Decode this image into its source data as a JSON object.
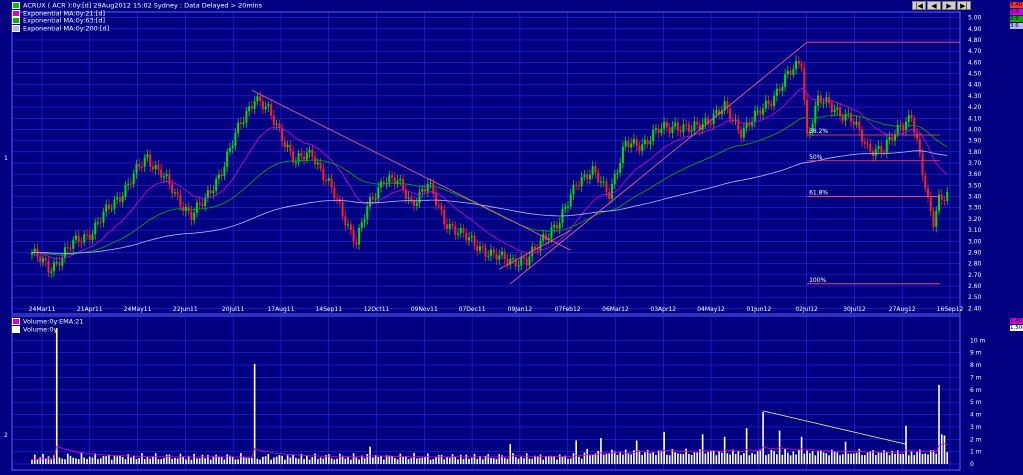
{
  "legend_price": [
    {
      "label": "ACRUX ( ACR ):0y:[d]  29Aug2012 15:02 Sydney : Data Delayed > 20mins",
      "color": "#00c000"
    },
    {
      "label": "Exponential MA:0y:21:[d]",
      "color": "#d800d8"
    },
    {
      "label": "Exponential MA:0y:63:[d]",
      "color": "#00b000"
    },
    {
      "label": "Exponential MA:0y:200:[d]",
      "color": "#b8b8ff"
    }
  ],
  "legend_volume": [
    {
      "label": "Volume:0y:EMA:21",
      "color": "#d800d8"
    },
    {
      "label": "Volume:0y",
      "color": "#ffffff"
    }
  ],
  "panel_labels": {
    "price": "1",
    "volume": "2"
  },
  "nav_buttons": [
    "|◀",
    "◀",
    "▶",
    "▶|"
  ],
  "last_values": {
    "price": "3.40",
    "ema21": "3.9",
    "ema63": "3.9",
    "ema200": "3.6",
    "vol_ema": "1.402",
    "volume": "1.5063"
  },
  "colors": {
    "up": "#00e000",
    "down": "#ff2020",
    "ema21": "#d800d8",
    "ema63": "#00b000",
    "ema200": "#b8b8ff",
    "fib": "#ff5060",
    "trend": "#ff6090",
    "volume": "#ffffff",
    "volume_ema": "#d800d8",
    "background": "#000080",
    "grid": "#3030ff",
    "fib_text": "#ffff60"
  },
  "chart_data": [
    {
      "type": "candlestick",
      "title": "ACRUX ( ACR ):0y:[d]  29Aug2012 15:02 Sydney : Data Delayed > 20mins",
      "x_ticks": [
        "24Mar11",
        "21Apr11",
        "24May11",
        "22Jun11",
        "20Jul11",
        "17Aug11",
        "14Sep11",
        "12Oct11",
        "09Nov11",
        "07Dec11",
        "09Jan12",
        "07Feb12",
        "06Mar12",
        "03Apr12",
        "04May12",
        "01Jun12",
        "02Jul12",
        "30Jul12",
        "27Aug12",
        "16Sep12"
      ],
      "y_ticks": [
        "5.00",
        "4.90",
        "4.80",
        "4.70",
        "4.60",
        "4.50",
        "4.40",
        "4.30",
        "4.20",
        "4.10",
        "4.00",
        "3.90",
        "3.80",
        "3.70",
        "3.60",
        "3.50",
        "3.40",
        "3.30",
        "3.20",
        "3.10",
        "3.00",
        "2.90",
        "2.80",
        "2.70",
        "2.60",
        "2.50",
        "2.40"
      ],
      "ylim": [
        2.35,
        5.05
      ],
      "price_anchors": [
        [
          0,
          2.9
        ],
        [
          6,
          2.75
        ],
        [
          14,
          2.95
        ],
        [
          22,
          3.1
        ],
        [
          30,
          3.35
        ],
        [
          36,
          3.55
        ],
        [
          42,
          3.75
        ],
        [
          47,
          3.62
        ],
        [
          52,
          3.4
        ],
        [
          58,
          3.25
        ],
        [
          63,
          3.35
        ],
        [
          70,
          3.7
        ],
        [
          76,
          4.05
        ],
        [
          81,
          4.3
        ],
        [
          86,
          4.15
        ],
        [
          91,
          3.95
        ],
        [
          96,
          3.7
        ],
        [
          102,
          3.8
        ],
        [
          106,
          3.6
        ],
        [
          112,
          3.3
        ],
        [
          118,
          3.0
        ],
        [
          122,
          3.28
        ],
        [
          128,
          3.58
        ],
        [
          133,
          3.52
        ],
        [
          138,
          3.35
        ],
        [
          144,
          3.5
        ],
        [
          150,
          3.2
        ],
        [
          156,
          3.05
        ],
        [
          162,
          2.98
        ],
        [
          168,
          2.85
        ],
        [
          174,
          2.85
        ],
        [
          180,
          2.8
        ],
        [
          186,
          3.05
        ],
        [
          192,
          3.15
        ],
        [
          198,
          3.55
        ],
        [
          204,
          3.6
        ],
        [
          210,
          3.45
        ],
        [
          216,
          3.85
        ],
        [
          222,
          3.88
        ],
        [
          228,
          3.98
        ],
        [
          234,
          4.05
        ],
        [
          240,
          3.98
        ],
        [
          246,
          4.1
        ],
        [
          252,
          4.18
        ],
        [
          258,
          4.0
        ],
        [
          264,
          4.12
        ],
        [
          268,
          4.25
        ],
        [
          272,
          4.38
        ],
        [
          276,
          4.5
        ],
        [
          280,
          4.62
        ],
        [
          282,
          3.95
        ],
        [
          286,
          4.25
        ],
        [
          292,
          4.2
        ],
        [
          298,
          4.08
        ],
        [
          304,
          3.85
        ],
        [
          310,
          3.8
        ],
        [
          316,
          4.05
        ],
        [
          320,
          4.12
        ],
        [
          324,
          3.6
        ],
        [
          326,
          3.35
        ],
        [
          328,
          3.2
        ],
        [
          330,
          3.4
        ]
      ],
      "fibonacci": [
        {
          "level": "38.2%",
          "price": 3.95
        },
        {
          "level": "50%",
          "price": 3.72
        },
        {
          "level": "61.8%",
          "price": 3.4
        },
        {
          "level": "100%",
          "price": 2.62
        }
      ],
      "series": [
        {
          "name": "Exponential MA:0y:21:[d]",
          "period": 21
        },
        {
          "name": "Exponential MA:0y:63:[d]",
          "period": 63
        },
        {
          "name": "Exponential MA:0y:200:[d]",
          "period": 200
        }
      ]
    },
    {
      "type": "bar",
      "title": "Volume:0y",
      "y_ticks": [
        "10 m",
        "9 m",
        "8 m",
        "7 m",
        "6 m",
        "5 m",
        "4 m",
        "3 m",
        "2 m",
        "1 m",
        "0"
      ],
      "ylim": [
        0,
        11
      ],
      "spikes": [
        [
          9,
          11.0
        ],
        [
          81,
          8.1
        ],
        [
          123,
          1.4
        ],
        [
          174,
          1.6
        ],
        [
          198,
          1.9
        ],
        [
          207,
          2.1
        ],
        [
          220,
          1.9
        ],
        [
          230,
          2.6
        ],
        [
          244,
          2.4
        ],
        [
          252,
          2.2
        ],
        [
          260,
          2.9
        ],
        [
          266,
          4.2
        ],
        [
          272,
          2.7
        ],
        [
          280,
          2.2
        ],
        [
          296,
          1.8
        ],
        [
          318,
          3.1
        ],
        [
          330,
          6.4
        ],
        [
          331,
          2.4
        ],
        [
          332,
          2.3
        ]
      ],
      "series": [
        {
          "name": "Volume:0y:EMA:21"
        },
        {
          "name": "Volume:0y"
        }
      ]
    }
  ]
}
